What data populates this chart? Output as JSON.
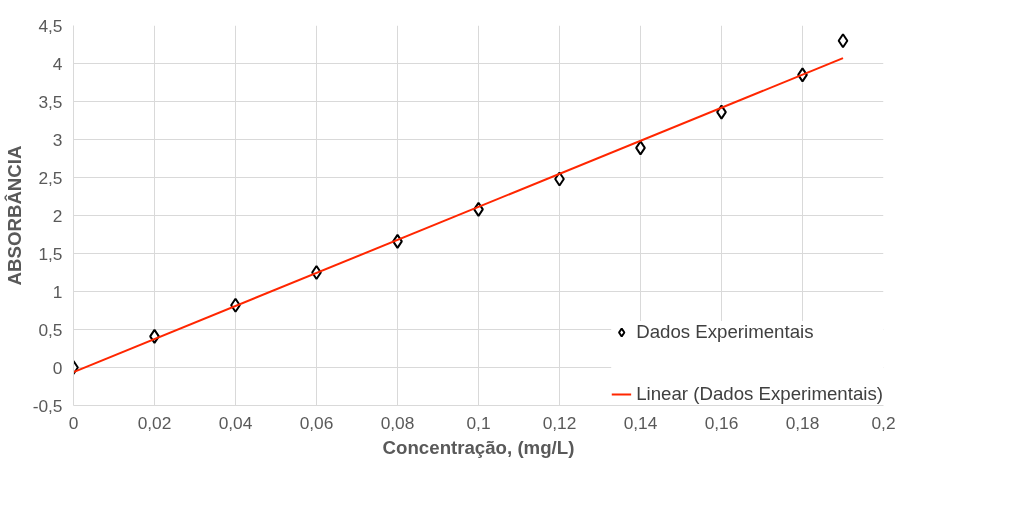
{
  "chart_data": {
    "type": "scatter",
    "xlabel": "Concentração, (mg/L)",
    "ylabel": "ABSORBÂNCIA",
    "series": [
      {
        "name": "Dados Experimentais",
        "type": "scatter",
        "color": "#000000",
        "marker": "diamond",
        "x": [
          0,
          0.02,
          0.04,
          0.06,
          0.08,
          0.1,
          0.12,
          0.14,
          0.16,
          0.18,
          0.19
        ],
        "values": [
          0.0,
          0.41,
          0.82,
          1.25,
          1.66,
          2.08,
          2.48,
          2.89,
          3.36,
          3.85,
          4.3
        ]
      },
      {
        "name": "Linear (Dados Experimentais)",
        "type": "line",
        "color": "#ff2600",
        "x": [
          0,
          0.19
        ],
        "values": [
          -0.06,
          4.07
        ]
      }
    ],
    "xlim": [
      0,
      0.2
    ],
    "ylim": [
      -0.5,
      4.5
    ],
    "xticks": [
      0,
      {
        "value": 0.02,
        "label": "0,02"
      },
      {
        "value": 0.04,
        "label": "0,04"
      },
      {
        "value": 0.06,
        "label": "0,06"
      },
      {
        "value": 0.08,
        "label": "0,08"
      },
      {
        "value": 0.1,
        "label": "0,1"
      },
      {
        "value": 0.12,
        "label": "0,12"
      },
      {
        "value": 0.14,
        "label": "0,14"
      },
      {
        "value": 0.16,
        "label": "0,16"
      },
      {
        "value": 0.18,
        "label": "0,18"
      },
      {
        "value": 0.2,
        "label": "0,2"
      }
    ],
    "yticks": [
      {
        "value": -0.5,
        "label": "-0,5"
      },
      0,
      {
        "value": 0.5,
        "label": "0,5"
      },
      1,
      {
        "value": 1.5,
        "label": "1,5"
      },
      2,
      {
        "value": 2.5,
        "label": "2,5"
      },
      3,
      {
        "value": 3.5,
        "label": "3,5"
      },
      4,
      {
        "value": 4.5,
        "label": "4,5"
      }
    ],
    "grid": true,
    "legend": "bottom right"
  }
}
